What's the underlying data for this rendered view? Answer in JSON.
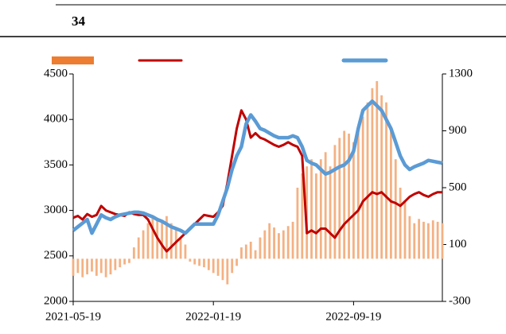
{
  "chart_data": {
    "type": "bar-line",
    "title": "34",
    "categories": [
      "2021-05-19",
      null,
      null,
      null,
      null,
      null,
      null,
      null,
      null,
      null,
      null,
      null,
      null,
      null,
      null,
      null,
      null,
      null,
      null,
      null,
      null,
      null,
      null,
      null,
      null,
      null,
      null,
      null,
      null,
      null,
      "2022-01-19",
      null,
      null,
      null,
      null,
      null,
      null,
      null,
      null,
      null,
      null,
      null,
      null,
      null,
      null,
      null,
      null,
      null,
      null,
      null,
      null,
      null,
      null,
      null,
      null,
      null,
      null,
      null,
      null,
      null,
      "2022-09-19",
      null,
      null,
      null,
      null,
      null,
      null,
      null,
      null,
      null,
      null,
      null,
      null,
      null,
      null,
      null,
      null,
      null,
      null,
      null
    ],
    "series": [
      {
        "color": "#f4b183",
        "legend_color": "#ed7d31",
        "kind": "bar",
        "axis": "y2",
        "values": [
          -120,
          -100,
          -130,
          -110,
          -90,
          -120,
          -100,
          -130,
          -110,
          -80,
          -60,
          -40,
          -30,
          80,
          150,
          200,
          250,
          300,
          280,
          260,
          300,
          250,
          200,
          150,
          100,
          -20,
          -40,
          -50,
          -60,
          -80,
          -100,
          -120,
          -150,
          -180,
          -100,
          -50,
          80,
          100,
          120,
          60,
          150,
          200,
          250,
          220,
          180,
          200,
          230,
          260,
          500,
          600,
          650,
          700,
          600,
          700,
          750,
          650,
          800,
          850,
          900,
          880,
          820,
          900,
          1000,
          1100,
          1200,
          1250,
          1150,
          1100,
          900,
          700,
          500,
          400,
          300,
          250,
          280,
          260,
          250,
          270,
          260,
          250
        ]
      },
      {
        "color": "#c00000",
        "kind": "line",
        "values": [
          2920,
          2940,
          2900,
          2960,
          2930,
          2950,
          3050,
          3000,
          2980,
          2960,
          2950,
          2940,
          2980,
          2960,
          2950,
          2950,
          2900,
          2800,
          2700,
          2620,
          2550,
          2600,
          2650,
          2700,
          2750,
          2800,
          2850,
          2900,
          2950,
          2940,
          2930,
          2980,
          3050,
          3300,
          3600,
          3900,
          4100,
          4000,
          3800,
          3850,
          3800,
          3780,
          3750,
          3720,
          3700,
          3720,
          3750,
          3720,
          3700,
          3600,
          2750,
          2780,
          2750,
          2800,
          2800,
          2750,
          2700,
          2780,
          2850,
          2900,
          2950,
          3000,
          3100,
          3150,
          3200,
          3180,
          3200,
          3150,
          3100,
          3080,
          3050,
          3100,
          3150,
          3180,
          3200,
          3170,
          3150,
          3180,
          3200,
          3200
        ]
      },
      {
        "color": "#5b9bd5",
        "kind": "line",
        "values": [
          2780,
          2820,
          2860,
          2900,
          2750,
          2850,
          2950,
          2920,
          2900,
          2930,
          2950,
          2960,
          2970,
          2980,
          2980,
          2970,
          2950,
          2930,
          2900,
          2880,
          2850,
          2820,
          2800,
          2780,
          2750,
          2800,
          2850,
          2850,
          2850,
          2850,
          2850,
          2950,
          3100,
          3250,
          3450,
          3600,
          3700,
          3950,
          4050,
          3980,
          3900,
          3880,
          3850,
          3820,
          3800,
          3800,
          3800,
          3820,
          3800,
          3700,
          3550,
          3520,
          3500,
          3450,
          3400,
          3420,
          3450,
          3480,
          3500,
          3550,
          3650,
          3900,
          4100,
          4150,
          4200,
          4150,
          4100,
          4000,
          3900,
          3750,
          3600,
          3500,
          3450,
          3480,
          3500,
          3520,
          3550,
          3540,
          3530,
          3520
        ]
      }
    ],
    "ylim": [
      2000,
      4500
    ],
    "yticks": [
      2000,
      2500,
      3000,
      3500,
      4000,
      4500
    ],
    "y2lim": [
      -300,
      1300
    ],
    "y2ticks": [
      -300,
      100,
      500,
      900,
      1300
    ]
  }
}
